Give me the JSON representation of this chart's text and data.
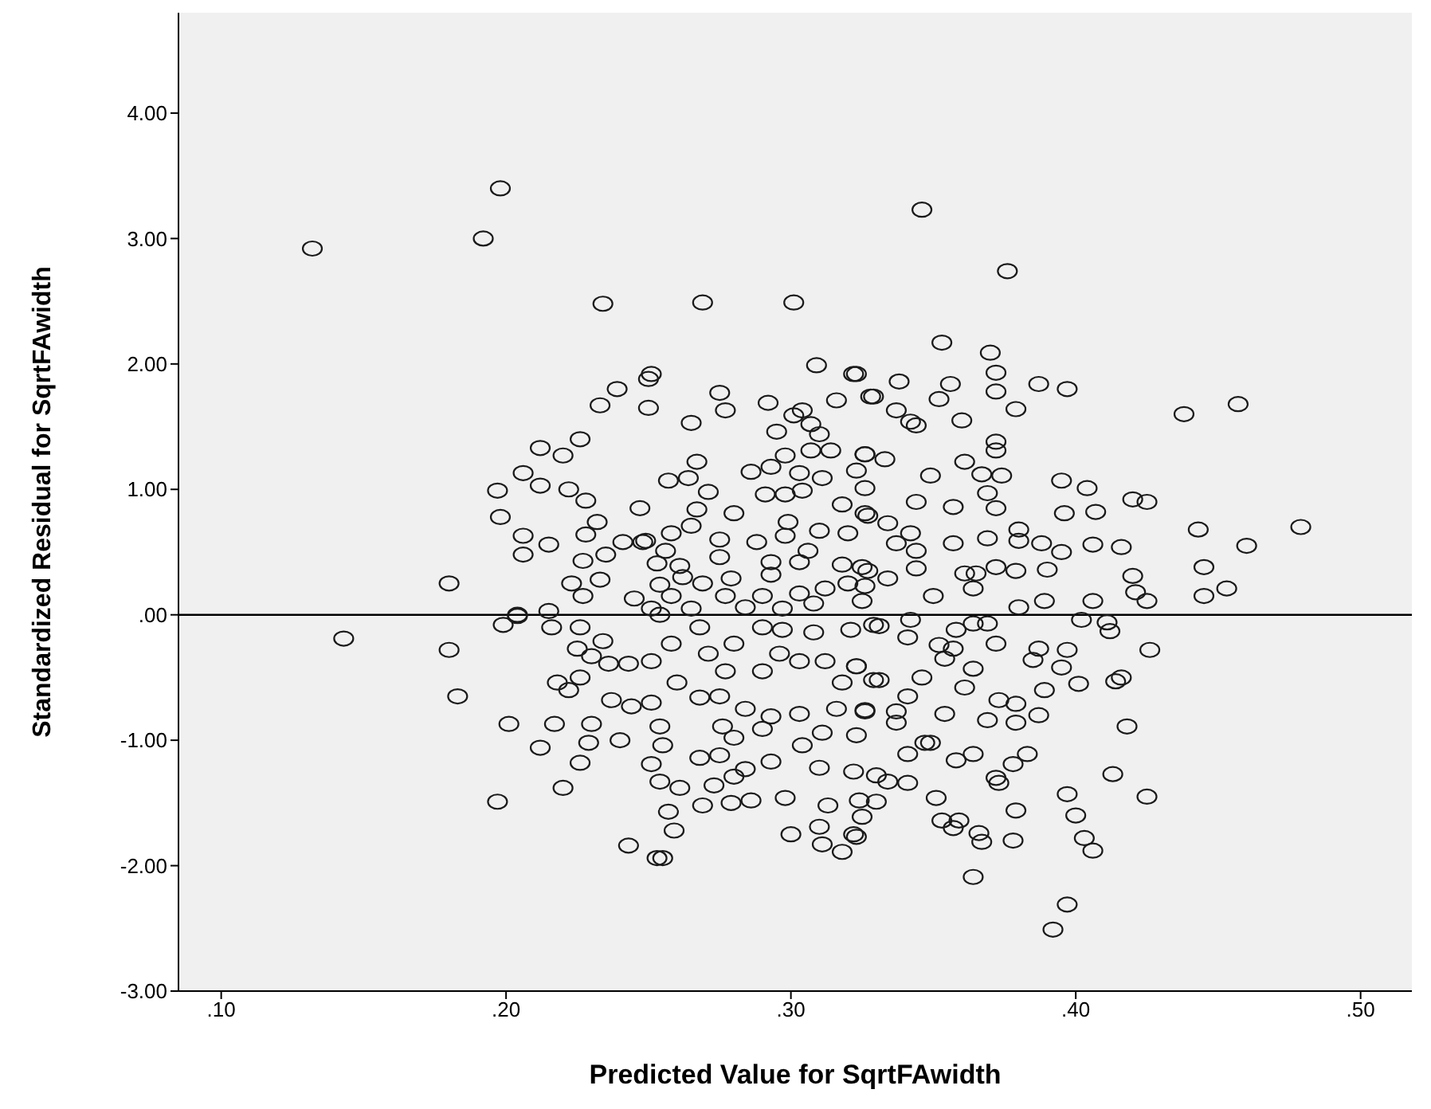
{
  "chart_data": {
    "type": "scatter",
    "xlabel": "Predicted Value for SqrtFAwidth",
    "ylabel": "Standardized Residual for SqrtFAwidth",
    "xlim": [
      0.085,
      0.518
    ],
    "ylim": [
      -3,
      4.8
    ],
    "xticks": [
      {
        "value": 0.1,
        "label": ".10"
      },
      {
        "value": 0.2,
        "label": ".20"
      },
      {
        "value": 0.3,
        "label": ".30"
      },
      {
        "value": 0.4,
        "label": ".40"
      },
      {
        "value": 0.5,
        "label": ".50"
      }
    ],
    "yticks": [
      {
        "value": -3,
        "label": "-3.00"
      },
      {
        "value": -2,
        "label": "-2.00"
      },
      {
        "value": -1,
        "label": "-1.00"
      },
      {
        "value": 0,
        "label": ".00"
      },
      {
        "value": 1,
        "label": "1.00"
      },
      {
        "value": 2,
        "label": "2.00"
      },
      {
        "value": 3,
        "label": "3.00"
      },
      {
        "value": 4,
        "label": "4.00"
      }
    ],
    "grid": false,
    "legend": false,
    "marker": "circle",
    "ref_lines": [
      {
        "axis": "y",
        "value": 0,
        "color": "#000000"
      }
    ],
    "series": [
      {
        "color": "#1a1a1a",
        "x": [
          0.346,
          0.376,
          0.353,
          0.37,
          0.372,
          0.356,
          0.387,
          0.397,
          0.323,
          0.338,
          0.329,
          0.352,
          0.372,
          0.379,
          0.438,
          0.457,
          0.337,
          0.342,
          0.344,
          0.36,
          0.372,
          0.372,
          0.326,
          0.333,
          0.349,
          0.361,
          0.367,
          0.374,
          0.395,
          0.404,
          0.42,
          0.425,
          0.369,
          0.372,
          0.357,
          0.344,
          0.396,
          0.407,
          0.443,
          0.479,
          0.46,
          0.445,
          0.453,
          0.445,
          0.425,
          0.42,
          0.421,
          0.416,
          0.406,
          0.395,
          0.388,
          0.38,
          0.38,
          0.369,
          0.357,
          0.372,
          0.379,
          0.39,
          0.38,
          0.389,
          0.406,
          0.365,
          0.361,
          0.364,
          0.35,
          0.334,
          0.327,
          0.342,
          0.326,
          0.402,
          0.411,
          0.412,
          0.426,
          0.397,
          0.395,
          0.387,
          0.385,
          0.372,
          0.369,
          0.364,
          0.358,
          0.354,
          0.357,
          0.364,
          0.352,
          0.389,
          0.401,
          0.414,
          0.416,
          0.373,
          0.379,
          0.379,
          0.387,
          0.369,
          0.361,
          0.354,
          0.346,
          0.341,
          0.331,
          0.418,
          0.383,
          0.378,
          0.372,
          0.373,
          0.364,
          0.358,
          0.349,
          0.347,
          0.341,
          0.413,
          0.425,
          0.397,
          0.4,
          0.403,
          0.406,
          0.379,
          0.378,
          0.367,
          0.366,
          0.359,
          0.357,
          0.353,
          0.351,
          0.364,
          0.397,
          0.392,
          0.341,
          0.334,
          0.33,
          0.33,
          0.325,
          0.323,
          0.337,
          0.337,
          0.326,
          0.323,
          0.331,
          0.341,
          0.342,
          0.326,
          0.334,
          0.344,
          0.344,
          0.337,
          0.327,
          0.132,
          0.143,
          0.18,
          0.18,
          0.183,
          0.198,
          0.192,
          0.234,
          0.25,
          0.251,
          0.239,
          0.233,
          0.25,
          0.226,
          0.212,
          0.22,
          0.206,
          0.212,
          0.222,
          0.228,
          0.197,
          0.198,
          0.247,
          0.232,
          0.228,
          0.206,
          0.215,
          0.206,
          0.241,
          0.248,
          0.227,
          0.235,
          0.223,
          0.233,
          0.227,
          0.245,
          0.215,
          0.204,
          0.199,
          0.204,
          0.216,
          0.226,
          0.225,
          0.234,
          0.23,
          0.236,
          0.243,
          0.226,
          0.218,
          0.222,
          0.237,
          0.244,
          0.201,
          0.217,
          0.23,
          0.212,
          0.229,
          0.24,
          0.226,
          0.22,
          0.197,
          0.243,
          0.253,
          0.269,
          0.301,
          0.309,
          0.322,
          0.328,
          0.316,
          0.275,
          0.277,
          0.292,
          0.265,
          0.304,
          0.301,
          0.307,
          0.295,
          0.31,
          0.314,
          0.307,
          0.298,
          0.326,
          0.267,
          0.257,
          0.264,
          0.271,
          0.286,
          0.293,
          0.303,
          0.311,
          0.323,
          0.291,
          0.298,
          0.304,
          0.318,
          0.326,
          0.267,
          0.28,
          0.265,
          0.258,
          0.299,
          0.298,
          0.31,
          0.32,
          0.275,
          0.288,
          0.249,
          0.306,
          0.275,
          0.256,
          0.261,
          0.253,
          0.293,
          0.293,
          0.303,
          0.318,
          0.325,
          0.279,
          0.269,
          0.262,
          0.254,
          0.312,
          0.29,
          0.303,
          0.32,
          0.277,
          0.258,
          0.251,
          0.265,
          0.284,
          0.297,
          0.308,
          0.325,
          0.254,
          0.268,
          0.258,
          0.251,
          0.271,
          0.28,
          0.29,
          0.297,
          0.308,
          0.321,
          0.329,
          0.296,
          0.29,
          0.303,
          0.312,
          0.323,
          0.318,
          0.329,
          0.277,
          0.26,
          0.268,
          0.251,
          0.275,
          0.284,
          0.293,
          0.303,
          0.316,
          0.326,
          0.254,
          0.276,
          0.29,
          0.28,
          0.311,
          0.304,
          0.323,
          0.255,
          0.251,
          0.268,
          0.275,
          0.284,
          0.293,
          0.31,
          0.322,
          0.254,
          0.261,
          0.273,
          0.28,
          0.269,
          0.279,
          0.286,
          0.298,
          0.313,
          0.324,
          0.257,
          0.259,
          0.3,
          0.31,
          0.322,
          0.311,
          0.318,
          0.255
        ],
        "values": [
          3.23,
          2.74,
          2.17,
          2.09,
          1.93,
          1.84,
          1.84,
          1.8,
          1.92,
          1.86,
          1.74,
          1.72,
          1.78,
          1.64,
          1.6,
          1.68,
          1.63,
          1.54,
          1.51,
          1.55,
          1.38,
          1.31,
          1.28,
          1.24,
          1.11,
          1.22,
          1.12,
          1.11,
          1.07,
          1.01,
          0.92,
          0.9,
          0.97,
          0.85,
          0.86,
          0.9,
          0.81,
          0.82,
          0.68,
          0.7,
          0.55,
          0.38,
          0.21,
          0.15,
          0.11,
          0.31,
          0.18,
          0.54,
          0.56,
          0.5,
          0.57,
          0.68,
          0.59,
          0.61,
          0.57,
          0.38,
          0.35,
          0.36,
          0.06,
          0.11,
          0.11,
          0.33,
          0.33,
          0.21,
          0.15,
          0.73,
          0.79,
          0.65,
          1.01,
          -0.04,
          -0.06,
          -0.13,
          -0.28,
          -0.28,
          -0.42,
          -0.27,
          -0.36,
          -0.23,
          -0.07,
          -0.07,
          -0.12,
          -0.35,
          -0.27,
          -0.43,
          -0.24,
          -0.6,
          -0.55,
          -0.53,
          -0.5,
          -0.68,
          -0.71,
          -0.86,
          -0.8,
          -0.84,
          -0.58,
          -0.79,
          -0.5,
          -0.65,
          -0.52,
          -0.89,
          -1.11,
          -1.19,
          -1.3,
          -1.34,
          -1.11,
          -1.16,
          -1.02,
          -1.02,
          -1.11,
          -1.27,
          -1.45,
          -1.43,
          -1.6,
          -1.78,
          -1.88,
          -1.56,
          -1.8,
          -1.81,
          -1.74,
          -1.64,
          -1.7,
          -1.64,
          -1.46,
          -2.09,
          -2.31,
          -2.51,
          -1.34,
          -1.33,
          -1.28,
          -1.49,
          -1.61,
          -1.77,
          -0.77,
          -0.86,
          -0.77,
          -0.41,
          -0.09,
          -0.18,
          -0.04,
          0.23,
          0.29,
          0.37,
          0.51,
          0.57,
          0.35,
          2.92,
          -0.19,
          0.25,
          -0.28,
          -0.65,
          3.4,
          3.0,
          2.48,
          1.88,
          1.92,
          1.8,
          1.67,
          1.65,
          1.4,
          1.33,
          1.27,
          1.13,
          1.03,
          1.0,
          0.91,
          0.99,
          0.78,
          0.85,
          0.74,
          0.64,
          0.63,
          0.56,
          0.48,
          0.58,
          0.58,
          0.43,
          0.48,
          0.25,
          0.28,
          0.15,
          0.13,
          0.03,
          0.0,
          -0.08,
          -0.01,
          -0.1,
          -0.1,
          -0.27,
          -0.21,
          -0.33,
          -0.39,
          -0.39,
          -0.5,
          -0.54,
          -0.6,
          -0.68,
          -0.73,
          -0.87,
          -0.87,
          -0.87,
          -1.06,
          -1.02,
          -1.0,
          -1.18,
          -1.38,
          -1.49,
          -1.84,
          -1.94,
          2.49,
          2.49,
          1.99,
          1.92,
          1.74,
          1.71,
          1.77,
          1.63,
          1.69,
          1.53,
          1.63,
          1.59,
          1.52,
          1.46,
          1.44,
          1.31,
          1.31,
          1.27,
          1.28,
          1.22,
          1.07,
          1.09,
          0.98,
          1.14,
          1.18,
          1.13,
          1.09,
          1.15,
          0.96,
          0.96,
          0.99,
          0.88,
          0.81,
          0.84,
          0.81,
          0.71,
          0.65,
          0.74,
          0.63,
          0.67,
          0.65,
          0.6,
          0.58,
          0.59,
          0.51,
          0.46,
          0.51,
          0.39,
          0.41,
          0.42,
          0.32,
          0.42,
          0.4,
          0.38,
          0.29,
          0.25,
          0.3,
          0.24,
          0.21,
          0.15,
          0.17,
          0.25,
          0.15,
          0.15,
          0.05,
          0.05,
          0.06,
          0.05,
          0.09,
          0.11,
          0.0,
          -0.1,
          -0.23,
          -0.37,
          -0.31,
          -0.23,
          -0.1,
          -0.12,
          -0.14,
          -0.12,
          -0.08,
          -0.31,
          -0.45,
          -0.37,
          -0.37,
          -0.41,
          -0.54,
          -0.52,
          -0.45,
          -0.54,
          -0.66,
          -0.7,
          -0.65,
          -0.75,
          -0.81,
          -0.79,
          -0.75,
          -0.76,
          -0.89,
          -0.89,
          -0.91,
          -0.98,
          -0.94,
          -1.04,
          -0.96,
          -1.04,
          -1.19,
          -1.14,
          -1.12,
          -1.23,
          -1.17,
          -1.22,
          -1.25,
          -1.33,
          -1.38,
          -1.36,
          -1.29,
          -1.52,
          -1.5,
          -1.48,
          -1.46,
          -1.52,
          -1.48,
          -1.57,
          -1.72,
          -1.75,
          -1.69,
          -1.75,
          -1.83,
          -1.89,
          -1.94
        ]
      }
    ]
  }
}
